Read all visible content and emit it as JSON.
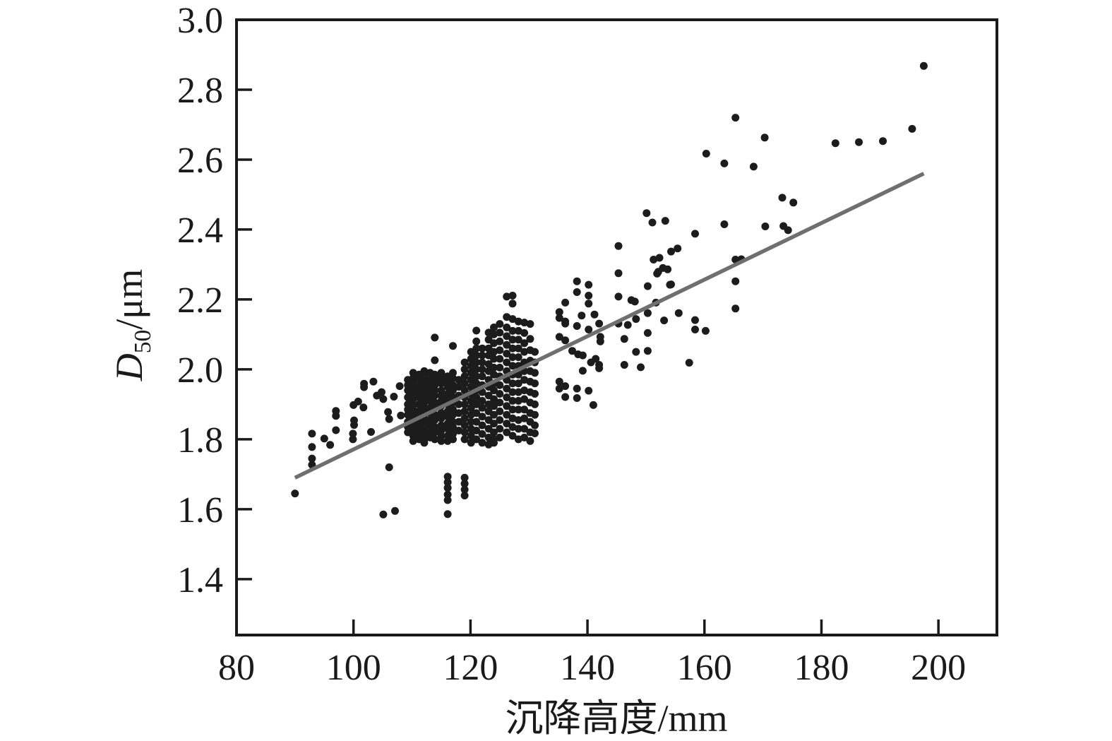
{
  "chart_data": {
    "type": "scatter",
    "title": "",
    "xlabel": "沉降高度/mm",
    "y_label_symbol": "D",
    "y_label_sub": "50",
    "y_label_unit": "/μm",
    "xlim": [
      80,
      210
    ],
    "ylim": [
      1.24,
      3.0
    ],
    "xticks": [
      80,
      100,
      120,
      140,
      160,
      180,
      200
    ],
    "yticks": [
      1.4,
      1.6,
      1.8,
      2.0,
      2.2,
      2.4,
      2.6,
      2.8,
      3.0
    ],
    "grid": false,
    "legend": "none",
    "marker_color": "#1c1c1c",
    "axis_color": "#1a1a1a",
    "trend_line": {
      "x1": 90.0,
      "y1": 1.69,
      "x2": 197.5,
      "y2": 2.56,
      "color": "#6f6f6f"
    },
    "points": [
      [
        90.0,
        1.645
      ],
      [
        92.9,
        1.816
      ],
      [
        92.9,
        1.778
      ],
      [
        92.9,
        1.745
      ],
      [
        92.9,
        1.727
      ],
      [
        95.0,
        1.802
      ],
      [
        96.0,
        1.784
      ],
      [
        97.0,
        1.881
      ],
      [
        97.0,
        1.867
      ],
      [
        97.0,
        1.826
      ],
      [
        99.9,
        1.816
      ],
      [
        99.9,
        1.8
      ],
      [
        100.0,
        1.898
      ],
      [
        100.1,
        1.854
      ],
      [
        100.1,
        1.841
      ],
      [
        100.8,
        1.908
      ],
      [
        101.7,
        1.891
      ],
      [
        101.8,
        1.959
      ],
      [
        101.8,
        1.949
      ],
      [
        103.0,
        1.821
      ],
      [
        103.4,
        1.965
      ],
      [
        104.0,
        1.925
      ],
      [
        104.8,
        1.935
      ],
      [
        105.1,
        1.915
      ],
      [
        105.9,
        1.878
      ],
      [
        106.1,
        1.858
      ],
      [
        106.1,
        1.72
      ],
      [
        106.9,
        1.922
      ],
      [
        107.9,
        1.952
      ],
      [
        108.1,
        1.868
      ],
      [
        105.1,
        1.585
      ],
      [
        107.1,
        1.595
      ],
      [
        116.1,
        1.693
      ],
      [
        116.1,
        1.677
      ],
      [
        116.1,
        1.661
      ],
      [
        116.1,
        1.642
      ],
      [
        116.1,
        1.626
      ],
      [
        116.1,
        1.586
      ],
      [
        119.0,
        1.69
      ],
      [
        119.0,
        1.673
      ],
      [
        119.0,
        1.656
      ],
      [
        119.0,
        1.639
      ],
      [
        135.2,
        2.164
      ],
      [
        135.2,
        2.147
      ],
      [
        135.2,
        2.093
      ],
      [
        135.2,
        1.965
      ],
      [
        135.2,
        1.945
      ],
      [
        136.2,
        2.191
      ],
      [
        136.2,
        2.137
      ],
      [
        136.2,
        2.131
      ],
      [
        136.2,
        2.083
      ],
      [
        136.2,
        1.952
      ],
      [
        136.2,
        1.921
      ],
      [
        137.4,
        2.053
      ],
      [
        138.2,
        2.252
      ],
      [
        138.2,
        2.221
      ],
      [
        138.2,
        2.124
      ],
      [
        138.2,
        1.945
      ],
      [
        138.2,
        1.918
      ],
      [
        138.4,
        2.043
      ],
      [
        139.0,
        2.154
      ],
      [
        139.2,
        2.04
      ],
      [
        139.2,
        1.996
      ],
      [
        140.2,
        2.242
      ],
      [
        140.2,
        2.211
      ],
      [
        140.2,
        2.188
      ],
      [
        140.2,
        2.114
      ],
      [
        140.2,
        1.939
      ],
      [
        140.6,
        2.02
      ],
      [
        141.0,
        1.898
      ],
      [
        141.2,
        2.157
      ],
      [
        141.4,
        2.03
      ],
      [
        142.0,
        2.131
      ],
      [
        142.0,
        2.013
      ],
      [
        142.0,
        2.003
      ],
      [
        142.2,
        2.093
      ],
      [
        142.2,
        2.08
      ],
      [
        145.3,
        2.353
      ],
      [
        145.3,
        2.275
      ],
      [
        145.3,
        2.208
      ],
      [
        145.3,
        2.131
      ],
      [
        146.3,
        2.087
      ],
      [
        146.3,
        2.013
      ],
      [
        146.9,
        2.127
      ],
      [
        147.5,
        2.198
      ],
      [
        148.1,
        2.194
      ],
      [
        148.3,
        2.144
      ],
      [
        148.3,
        2.05
      ],
      [
        149.1,
        2.006
      ],
      [
        150.1,
        2.447
      ],
      [
        150.3,
        2.238
      ],
      [
        150.3,
        2.161
      ],
      [
        150.3,
        2.104
      ],
      [
        150.3,
        2.053
      ],
      [
        151.1,
        2.42
      ],
      [
        151.3,
        2.314
      ],
      [
        151.7,
        2.191
      ],
      [
        151.9,
        2.274
      ],
      [
        152.1,
        2.279
      ],
      [
        152.3,
        2.319
      ],
      [
        152.9,
        2.29
      ],
      [
        153.1,
        2.14
      ],
      [
        153.3,
        2.425
      ],
      [
        153.7,
        2.286
      ],
      [
        154.1,
        2.242
      ],
      [
        154.3,
        2.337
      ],
      [
        154.3,
        2.243
      ],
      [
        155.4,
        2.346
      ],
      [
        155.6,
        2.161
      ],
      [
        157.4,
        2.019
      ],
      [
        158.4,
        2.388
      ],
      [
        158.4,
        2.141
      ],
      [
        158.4,
        2.114
      ],
      [
        160.2,
        2.11
      ],
      [
        160.3,
        2.617
      ],
      [
        163.4,
        2.589
      ],
      [
        163.4,
        2.415
      ],
      [
        165.3,
        2.72
      ],
      [
        165.3,
        2.314
      ],
      [
        165.3,
        2.252
      ],
      [
        165.3,
        2.174
      ],
      [
        166.3,
        2.315
      ],
      [
        168.4,
        2.58
      ],
      [
        170.3,
        2.663
      ],
      [
        170.4,
        2.409
      ],
      [
        173.3,
        2.491
      ],
      [
        173.5,
        2.41
      ],
      [
        174.3,
        2.398
      ],
      [
        175.2,
        2.477
      ],
      [
        182.4,
        2.647
      ],
      [
        186.4,
        2.65
      ],
      [
        190.5,
        2.653
      ],
      [
        195.5,
        2.688
      ],
      [
        197.5,
        2.868
      ]
    ],
    "dense_columns": [
      {
        "x": 109.3,
        "ys": [
          1.97,
          1.955,
          1.94,
          1.92,
          1.9,
          1.885,
          1.87,
          1.85,
          1.835,
          1.82
        ]
      },
      {
        "x": 110.2,
        "ys": [
          1.99,
          1.975,
          1.96,
          1.945,
          1.93,
          1.915,
          1.9,
          1.885,
          1.87,
          1.855,
          1.84,
          1.825,
          1.81,
          1.795
        ]
      },
      {
        "x": 111.2,
        "ys": [
          1.985,
          1.97,
          1.95,
          1.935,
          1.92,
          1.9,
          1.88,
          1.865,
          1.845,
          1.83,
          1.815,
          1.8
        ]
      },
      {
        "x": 112.1,
        "ys": [
          1.995,
          1.98,
          1.965,
          1.95,
          1.935,
          1.92,
          1.905,
          1.89,
          1.875,
          1.86,
          1.845,
          1.83,
          1.815,
          1.8,
          1.79
        ]
      },
      {
        "x": 113.1,
        "ys": [
          1.99,
          1.97,
          1.955,
          1.94,
          1.925,
          1.91,
          1.89,
          1.875,
          1.855,
          1.84,
          1.82,
          1.805
        ]
      },
      {
        "x": 113.9,
        "ys": [
          2.091,
          2.026,
          1.985,
          1.97,
          1.955,
          1.94,
          1.925,
          1.905,
          1.89,
          1.87,
          1.855,
          1.835,
          1.82,
          1.8
        ]
      },
      {
        "x": 115.0,
        "ys": [
          1.99,
          1.975,
          1.96,
          1.94,
          1.925,
          1.91,
          1.895,
          1.875,
          1.86,
          1.84,
          1.825,
          1.81,
          1.795
        ]
      },
      {
        "x": 116.1,
        "ys": [
          1.98,
          1.965,
          1.95,
          1.93,
          1.915,
          1.9,
          1.88,
          1.865,
          1.845,
          1.83,
          1.81,
          1.795
        ]
      },
      {
        "x": 117.0,
        "ys": [
          2.067,
          1.99,
          1.975,
          1.955,
          1.94,
          1.92,
          1.905,
          1.885,
          1.87,
          1.85,
          1.835,
          1.815,
          1.8
        ]
      },
      {
        "x": 118.0,
        "ys": [
          1.97,
          1.95,
          1.925,
          1.9,
          1.875,
          1.85,
          1.825
        ]
      },
      {
        "x": 119.0,
        "ys": [
          2.02,
          2.0,
          1.98,
          1.96,
          1.94,
          1.92,
          1.9,
          1.88,
          1.86,
          1.84,
          1.82,
          1.8
        ]
      },
      {
        "x": 120.1,
        "ys": [
          2.05,
          2.03,
          2.01,
          1.99,
          1.97,
          1.95,
          1.93,
          1.91,
          1.89,
          1.87,
          1.85,
          1.83,
          1.81,
          1.79
        ]
      },
      {
        "x": 121.0,
        "ys": [
          2.111,
          2.08,
          2.06,
          2.04,
          2.02,
          2.0,
          1.98,
          1.96,
          1.94,
          1.92,
          1.9,
          1.875,
          1.85,
          1.825,
          1.8
        ]
      },
      {
        "x": 122.0,
        "ys": [
          2.06,
          2.04,
          2.02,
          2.0,
          1.98,
          1.955,
          1.935,
          1.91,
          1.89,
          1.865,
          1.84,
          1.815,
          1.79
        ]
      },
      {
        "x": 123.1,
        "ys": [
          2.105,
          2.085,
          2.06,
          2.04,
          2.015,
          1.995,
          1.97,
          1.95,
          1.925,
          1.9,
          1.88,
          1.855,
          1.83,
          1.805,
          1.785
        ]
      },
      {
        "x": 124.0,
        "ys": [
          2.12,
          2.1,
          2.075,
          2.05,
          2.03,
          2.005,
          1.985,
          1.96,
          1.94,
          1.915,
          1.895,
          1.87,
          1.845,
          1.82,
          1.8,
          1.79
        ]
      },
      {
        "x": 125.0,
        "ys": [
          2.13,
          2.105,
          2.08,
          2.055,
          2.03,
          2.005,
          1.98,
          1.955,
          1.93,
          1.905,
          1.88,
          1.855,
          1.83,
          1.805
        ]
      },
      {
        "x": 126.2,
        "ys": [
          2.208,
          2.15,
          2.12,
          2.095,
          2.07,
          2.045,
          2.02,
          1.995,
          1.97,
          1.945,
          1.92,
          1.895,
          1.87,
          1.845,
          1.82
        ]
      },
      {
        "x": 127.2,
        "ys": [
          2.211,
          2.188,
          2.144,
          2.11,
          2.085,
          2.06,
          2.035,
          2.01,
          1.985,
          1.96,
          1.935,
          1.91,
          1.885,
          1.86,
          1.835,
          1.81
        ]
      },
      {
        "x": 128.2,
        "ys": [
          2.137,
          2.11,
          2.085,
          2.06,
          2.035,
          2.01,
          1.985,
          1.96,
          1.935,
          1.91,
          1.885,
          1.855,
          1.83,
          1.8
        ]
      },
      {
        "x": 129.2,
        "ys": [
          2.134,
          2.104,
          2.075,
          2.05,
          2.02,
          1.995,
          1.97,
          1.94,
          1.915,
          1.885,
          1.86,
          1.83,
          1.805
        ]
      },
      {
        "x": 130.2,
        "ys": [
          2.13,
          2.087,
          2.055,
          2.025,
          1.995,
          1.965,
          1.935,
          1.905,
          1.875,
          1.85,
          1.82,
          1.795
        ]
      },
      {
        "x": 131.0,
        "ys": [
          2.05,
          2.02,
          1.99,
          1.96,
          1.93,
          1.9,
          1.87,
          1.84,
          1.817
        ]
      }
    ]
  }
}
